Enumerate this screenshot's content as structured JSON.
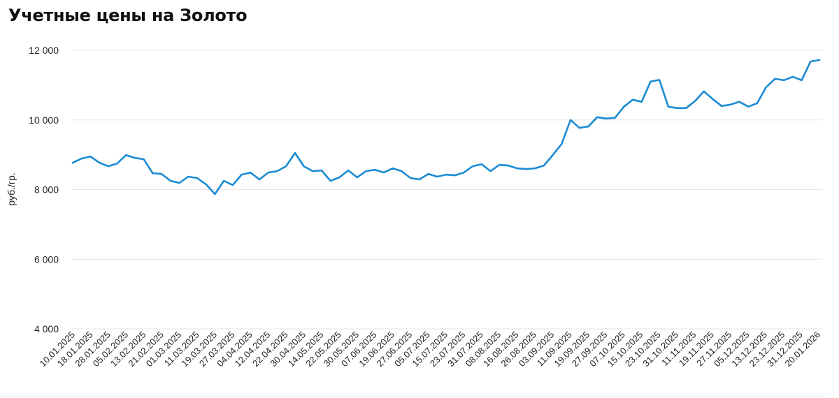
{
  "title": "Учетные цены на Золото",
  "chart_data": {
    "type": "line",
    "title": "Учетные цены на Золото",
    "xlabel": "",
    "ylabel": "руб./гр.",
    "ylim": [
      4000,
      12000
    ],
    "y_ticks": [
      4000,
      6000,
      8000,
      10000,
      12000
    ],
    "y_tick_labels": [
      "4 000",
      "6 000",
      "8 000",
      "10 000",
      "12 000"
    ],
    "grid": "horizontal",
    "line_color": "#1a8bd4",
    "x_tick_labels": [
      "10.01.2025",
      "18.01.2025",
      "28.01.2025",
      "05.02.2025",
      "13.02.2025",
      "21.02.2025",
      "01.03.2025",
      "11.03.2025",
      "19.03.2025",
      "27.03.2025",
      "04.04.2025",
      "12.04.2025",
      "22.04.2025",
      "30.04.2025",
      "14.05.2025",
      "22.05.2025",
      "30.05.2025",
      "07.06.2025",
      "19.06.2025",
      "27.06.2025",
      "05.07.2025",
      "15.07.2025",
      "23.07.2025",
      "31.07.2025",
      "08.08.2025",
      "16.08.2025",
      "26.08.2025",
      "03.09.2025",
      "11.09.2025",
      "19.09.2025",
      "27.09.2025",
      "07.10.2025",
      "15.10.2025",
      "23.10.2025",
      "31.10.2025",
      "11.11.2025",
      "19.11.2025",
      "27.11.2025",
      "05.12.2025",
      "13.12.2025",
      "23.12.2025",
      "31.12.2025",
      "20.01.2026"
    ],
    "x": [
      "10.01.2025",
      "14.01.2025",
      "18.01.2025",
      "23.01.2025",
      "28.01.2025",
      "31.01.2025",
      "05.02.2025",
      "10.02.2025",
      "13.02.2025",
      "18.02.2025",
      "21.02.2025",
      "26.02.2025",
      "01.03.2025",
      "06.03.2025",
      "11.03.2025",
      "14.03.2025",
      "19.03.2025",
      "24.03.2025",
      "27.03.2025",
      "01.04.2025",
      "04.04.2025",
      "09.04.2025",
      "12.04.2025",
      "17.04.2025",
      "22.04.2025",
      "25.04.2025",
      "30.04.2025",
      "07.05.2025",
      "14.05.2025",
      "19.05.2025",
      "22.05.2025",
      "27.05.2025",
      "30.05.2025",
      "04.06.2025",
      "07.06.2025",
      "16.06.2025",
      "19.06.2025",
      "24.06.2025",
      "27.06.2025",
      "02.07.2025",
      "05.07.2025",
      "10.07.2025",
      "15.07.2025",
      "18.07.2025",
      "23.07.2025",
      "28.07.2025",
      "31.07.2025",
      "05.08.2025",
      "08.08.2025",
      "13.08.2025",
      "16.08.2025",
      "21.08.2025",
      "26.08.2025",
      "29.08.2025",
      "03.09.2025",
      "08.09.2025",
      "11.09.2025",
      "16.09.2025",
      "19.09.2025",
      "24.09.2025",
      "27.09.2025",
      "02.10.2025",
      "07.10.2025",
      "10.10.2025",
      "15.10.2025",
      "20.10.2025",
      "23.10.2025",
      "28.10.2025",
      "31.10.2025",
      "07.11.2025",
      "11.11.2025",
      "14.11.2025",
      "19.11.2025",
      "24.11.2025",
      "27.11.2025",
      "02.12.2025",
      "05.12.2025",
      "10.12.2025",
      "13.12.2025",
      "18.12.2025",
      "23.12.2025",
      "26.12.2025",
      "31.12.2025",
      "14.01.2026",
      "20.01.2026"
    ],
    "series": [
      {
        "values": [
          8770,
          8890,
          8950,
          8770,
          8670,
          8750,
          8990,
          8910,
          8870,
          8470,
          8450,
          8250,
          8190,
          8370,
          8330,
          8150,
          7870,
          8250,
          8130,
          8430,
          8490,
          8290,
          8490,
          8530,
          8670,
          9050,
          8670,
          8530,
          8550,
          8250,
          8350,
          8550,
          8350,
          8530,
          8570,
          8490,
          8610,
          8530,
          8330,
          8290,
          8450,
          8370,
          8430,
          8410,
          8490,
          8670,
          8730,
          8530,
          8710,
          8690,
          8610,
          8590,
          8610,
          8690,
          8990,
          9310,
          10000,
          9770,
          9810,
          10080,
          10040,
          10060,
          10380,
          10580,
          10520,
          11100,
          11150,
          10380,
          10340,
          10340,
          10540,
          10820,
          10600,
          10400,
          10440,
          10520,
          10380,
          10480,
          10940,
          11180,
          11140,
          11240,
          11140,
          11680,
          11720
        ]
      }
    ]
  }
}
